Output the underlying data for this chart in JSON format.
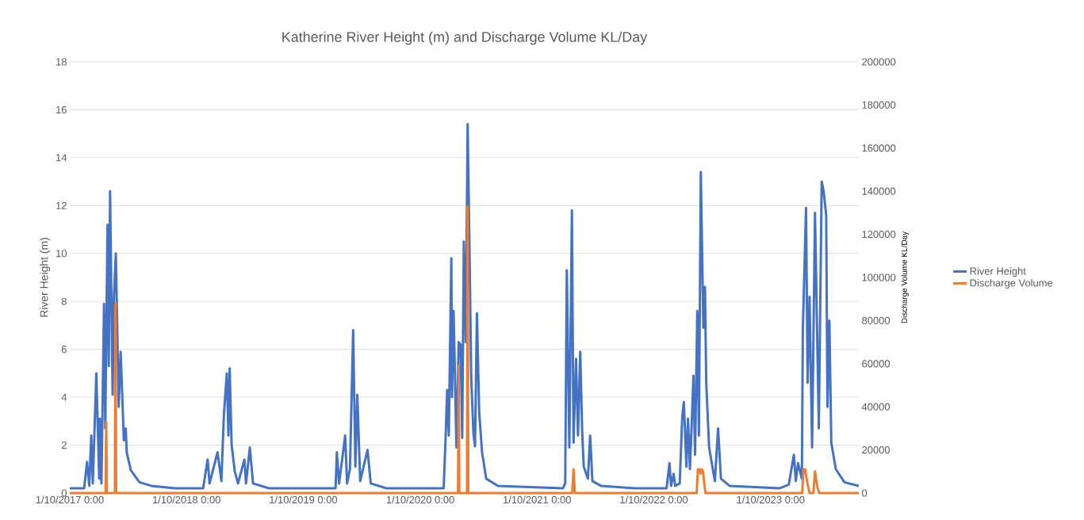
{
  "chart_data": {
    "type": "line",
    "title": "Katherine River Height (m) and Discharge Volume KL/Day",
    "ylabel": "River Height (m)",
    "y2label": "Discharge Volume KL/Day",
    "xlim": [
      "2017-10-01",
      "2024-07-03"
    ],
    "xticks": [
      {
        "value": "2017-10-01",
        "label": "1/10/2017 0:00"
      },
      {
        "value": "2018-10-01",
        "label": "1/10/2018 0:00"
      },
      {
        "value": "2019-10-01",
        "label": "1/10/2019 0:00"
      },
      {
        "value": "2020-10-01",
        "label": "1/10/2020 0:00"
      },
      {
        "value": "2021-10-01",
        "label": "1/10/2021 0:00"
      },
      {
        "value": "2022-10-01",
        "label": "1/10/2022 0:00"
      },
      {
        "value": "2023-10-01",
        "label": "1/10/2023 0:00"
      }
    ],
    "ylim": [
      0,
      18
    ],
    "yticks": [
      0,
      2,
      4,
      6,
      8,
      10,
      12,
      14,
      16,
      18
    ],
    "y2lim": [
      0,
      200000
    ],
    "y2ticks": [
      0,
      20000,
      40000,
      60000,
      80000,
      100000,
      120000,
      140000,
      160000,
      180000,
      200000
    ],
    "grid": "y",
    "legend": "right",
    "series": [
      {
        "name": "River Height",
        "color": "#4472c4",
        "x": [
          "2017-10-01",
          "2017-11-15",
          "2017-11-24",
          "2017-12-01",
          "2017-12-07",
          "2017-12-12",
          "2017-12-23",
          "2018-01-01",
          "2018-01-03",
          "2018-01-08",
          "2018-01-16",
          "2018-01-20",
          "2018-01-27",
          "2018-01-31",
          "2018-02-04",
          "2018-02-12",
          "2018-02-16",
          "2018-02-22",
          "2018-03-03",
          "2018-03-09",
          "2018-03-14",
          "2018-03-19",
          "2018-03-25",
          "2018-03-28",
          "2018-04-10",
          "2018-05-07",
          "2018-06-13",
          "2018-08-27",
          "2018-11-22",
          "2018-12-06",
          "2018-12-12",
          "2019-01-06",
          "2019-01-18",
          "2019-01-26",
          "2019-02-04",
          "2019-02-09",
          "2019-02-13",
          "2019-02-19",
          "2019-03-01",
          "2019-03-11",
          "2019-03-31",
          "2019-04-05",
          "2019-04-17",
          "2019-04-27",
          "2019-06-16",
          "2020-01-10",
          "2020-01-14",
          "2020-01-21",
          "2020-02-09",
          "2020-02-15",
          "2020-02-24",
          "2020-03-05",
          "2020-03-12",
          "2020-03-18",
          "2020-03-27",
          "2020-04-19",
          "2020-04-29",
          "2020-06-17",
          "2020-12-13",
          "2020-12-19",
          "2020-12-24",
          "2020-12-29",
          "2021-01-06",
          "2021-01-08",
          "2021-01-13",
          "2021-01-22",
          "2021-01-29",
          "2021-02-04",
          "2021-02-09",
          "2021-02-14",
          "2021-02-20",
          "2021-02-26",
          "2021-03-04",
          "2021-03-09",
          "2021-03-16",
          "2021-03-21",
          "2021-03-27",
          "2021-04-03",
          "2021-04-12",
          "2021-04-25",
          "2021-06-01",
          "2021-12-21",
          "2021-12-28",
          "2022-01-02",
          "2022-01-10",
          "2022-01-18",
          "2022-01-23",
          "2022-01-31",
          "2022-02-06",
          "2022-02-13",
          "2022-02-19",
          "2022-02-24",
          "2022-03-09",
          "2022-03-16",
          "2022-03-23",
          "2022-04-19",
          "2022-08-02",
          "2022-11-10",
          "2022-11-19",
          "2022-11-24",
          "2022-12-02",
          "2022-12-07",
          "2022-12-21",
          "2022-12-29",
          "2023-01-03",
          "2023-01-11",
          "2023-01-16",
          "2023-01-22",
          "2023-01-27",
          "2023-02-02",
          "2023-02-07",
          "2023-02-14",
          "2023-02-19",
          "2023-02-25",
          "2023-03-05",
          "2023-03-10",
          "2023-03-14",
          "2023-03-23",
          "2023-04-10",
          "2023-04-20",
          "2023-04-29",
          "2023-05-26",
          "2023-10-30",
          "2023-11-27",
          "2023-12-13",
          "2023-12-19",
          "2023-12-26",
          "2024-01-07",
          "2024-01-10",
          "2024-01-20",
          "2024-01-25",
          "2024-01-31",
          "2024-02-08",
          "2024-02-17",
          "2024-02-29",
          "2024-03-09",
          "2024-03-15",
          "2024-03-23",
          "2024-03-27",
          "2024-04-02",
          "2024-04-08",
          "2024-04-22",
          "2024-05-19",
          "2024-07-03"
        ],
        "values": [
          0.2,
          0.2,
          1.3,
          0.3,
          2.4,
          0.4,
          5.0,
          0.6,
          3.1,
          0.4,
          7.9,
          2.7,
          11.2,
          5.3,
          12.6,
          4.1,
          8.2,
          10.0,
          3.6,
          5.9,
          4.1,
          2.2,
          2.7,
          1.7,
          0.95,
          0.45,
          0.3,
          0.2,
          0.2,
          1.4,
          0.4,
          1.7,
          0.5,
          3.3,
          5.0,
          2.4,
          5.2,
          2.0,
          0.9,
          0.4,
          1.4,
          0.4,
          1.9,
          0.4,
          0.2,
          0.2,
          1.7,
          0.4,
          2.4,
          0.4,
          1.0,
          6.8,
          1.1,
          4.1,
          0.5,
          1.8,
          0.4,
          0.2,
          0.2,
          2.3,
          4.3,
          2.4,
          9.8,
          4.0,
          7.6,
          1.9,
          6.3,
          6.2,
          2.3,
          10.5,
          6.3,
          15.4,
          10.0,
          4.9,
          2.5,
          1.95,
          7.5,
          3.4,
          1.7,
          0.6,
          0.3,
          0.2,
          0.4,
          9.3,
          1.9,
          11.8,
          2.1,
          5.6,
          2.4,
          5.9,
          2.6,
          1.1,
          0.6,
          2.4,
          0.5,
          0.3,
          0.2,
          0.2,
          1.25,
          0.3,
          0.8,
          0.3,
          0.4,
          3.2,
          3.8,
          1.1,
          3.1,
          1.0,
          2.7,
          4.9,
          1.6,
          7.6,
          2.4,
          13.4,
          6.9,
          8.6,
          4.6,
          1.9,
          0.5,
          2.7,
          0.6,
          0.3,
          0.2,
          0.35,
          1.6,
          0.5,
          1.25,
          0.6,
          6.8,
          11.9,
          4.6,
          8.2,
          1.9,
          11.7,
          2.7,
          13.0,
          12.6,
          11.6,
          3.6,
          7.2,
          2.1,
          1.0,
          0.45,
          0.3
        ]
      },
      {
        "name": "Discharge Volume",
        "color": "#ed7d31",
        "axis": "y2",
        "x": [
          "2017-10-01",
          "2018-01-21",
          "2018-01-23",
          "2018-01-25",
          "2018-02-19",
          "2018-02-21",
          "2018-02-23",
          "2021-01-27",
          "2021-01-29",
          "2021-01-31",
          "2021-02-24",
          "2021-02-26",
          "2021-02-28",
          "2022-01-19",
          "2022-01-23",
          "2022-01-27",
          "2023-02-12",
          "2023-02-16",
          "2023-02-21",
          "2023-02-24",
          "2023-02-28",
          "2023-03-04",
          "2023-03-08",
          "2023-03-12",
          "2024-01-08",
          "2024-01-12",
          "2024-01-17",
          "2024-01-25",
          "2024-01-31",
          "2024-02-12",
          "2024-02-17",
          "2024-02-24",
          "2024-03-01",
          "2024-07-03"
        ],
        "values": [
          0,
          0,
          33000,
          0,
          0,
          88000,
          0,
          0,
          59000,
          0,
          0,
          133000,
          0,
          0,
          11000,
          0,
          0,
          11000,
          11000,
          9000,
          11000,
          10000,
          4000,
          0,
          0,
          11000,
          11000,
          4000,
          0,
          0,
          10000,
          3000,
          0,
          0
        ]
      }
    ]
  }
}
